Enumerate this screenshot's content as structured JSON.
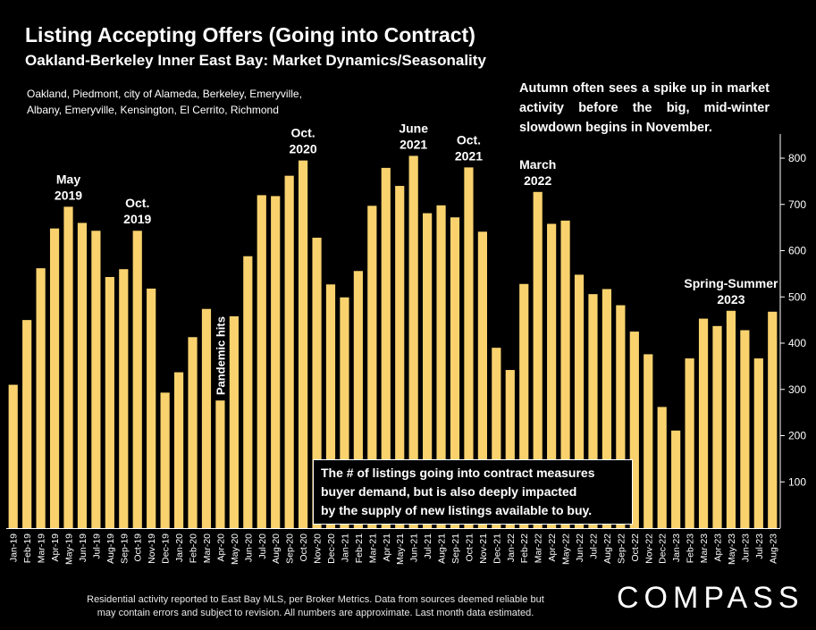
{
  "title": "Listing Accepting Offers (Going into Contract)",
  "subtitle": "Oakland-Berkeley Inner East Bay: Market Dynamics/Seasonality",
  "area_note": {
    "line1": "Oakland, Piedmont, city of Alameda, Berkeley, Emeryville,",
    "line2": "Albany, Emeryville, Kensington, El Cerrito, Richmond"
  },
  "autumn_note": "Autumn often sees a spike up in market activity before the big, mid-winter slowdown begins in November.",
  "demand_box": {
    "line1": "The # of listings going into contract measures",
    "line2": "buyer demand, but is also deeply impacted",
    "line3": "by the supply of new listings available to buy."
  },
  "footer": {
    "line1": "Residential activity reported to East Bay MLS, per Broker Metrics. Data from sources deemed reliable but",
    "line2": "may contain errors and subject to revision. All numbers are approximate. Last month data estimated."
  },
  "logo": "COMPASS",
  "colors": {
    "bar": "#f9d26e",
    "background": "#000000",
    "text": "#ffffff"
  },
  "chart_data": {
    "type": "bar",
    "categories": [
      "Jan-19",
      "Feb-19",
      "Mar-19",
      "Apr-19",
      "May-19",
      "Jun-19",
      "Jul-19",
      "Aug-19",
      "Sep-19",
      "Oct-19",
      "Nov-19",
      "Dec-19",
      "Jan-20",
      "Feb-20",
      "Mar-20",
      "Apr-20",
      "May-20",
      "Jun-20",
      "Jul-20",
      "Aug-20",
      "Sep-20",
      "Oct-20",
      "Nov-20",
      "Dec-20",
      "Jan-21",
      "Feb-21",
      "Mar-21",
      "Apr-21",
      "May-21",
      "Jun-21",
      "Jul-21",
      "Aug-21",
      "Sep-21",
      "Oct-21",
      "Nov-21",
      "Dec-21",
      "Jan-22",
      "Feb-22",
      "Mar-22",
      "Apr-22",
      "May-22",
      "Jun-22",
      "Jul-22",
      "Aug-22",
      "Sep-22",
      "Oct-22",
      "Nov-22",
      "Dec-22",
      "Jan-23",
      "Feb-23",
      "Mar-23",
      "Apr-23",
      "May-23",
      "Jun-23",
      "Jul-23",
      "Aug-23"
    ],
    "values": [
      310,
      450,
      562,
      648,
      695,
      660,
      643,
      543,
      560,
      643,
      518,
      293,
      337,
      413,
      474,
      276,
      458,
      588,
      720,
      718,
      762,
      795,
      628,
      527,
      499,
      556,
      697,
      779,
      740,
      805,
      681,
      698,
      672,
      780,
      641,
      390,
      342,
      528,
      727,
      658,
      665,
      548,
      506,
      517,
      482,
      425,
      376,
      262,
      211,
      367,
      453,
      437,
      470,
      428,
      367,
      468
    ],
    "ylim": [
      0,
      850
    ],
    "yticks": [
      100,
      200,
      300,
      400,
      500,
      600,
      700,
      800
    ],
    "y_axis_position": "right",
    "grid": false,
    "annotations": [
      {
        "index": 4,
        "lines": [
          "May",
          "2019"
        ]
      },
      {
        "index": 9,
        "lines": [
          "Oct.",
          "2019"
        ]
      },
      {
        "index": 15,
        "lines": [
          "Pandemic hits"
        ],
        "rotated": true
      },
      {
        "index": 21,
        "lines": [
          "Oct.",
          "2020"
        ]
      },
      {
        "index": 29,
        "lines": [
          "June",
          "2021"
        ]
      },
      {
        "index": 33,
        "lines": [
          "Oct.",
          "2021"
        ]
      },
      {
        "index": 38,
        "lines": [
          "March",
          "2022"
        ]
      },
      {
        "index": 52,
        "lines": [
          "Spring-Summer",
          "2023"
        ]
      }
    ]
  }
}
